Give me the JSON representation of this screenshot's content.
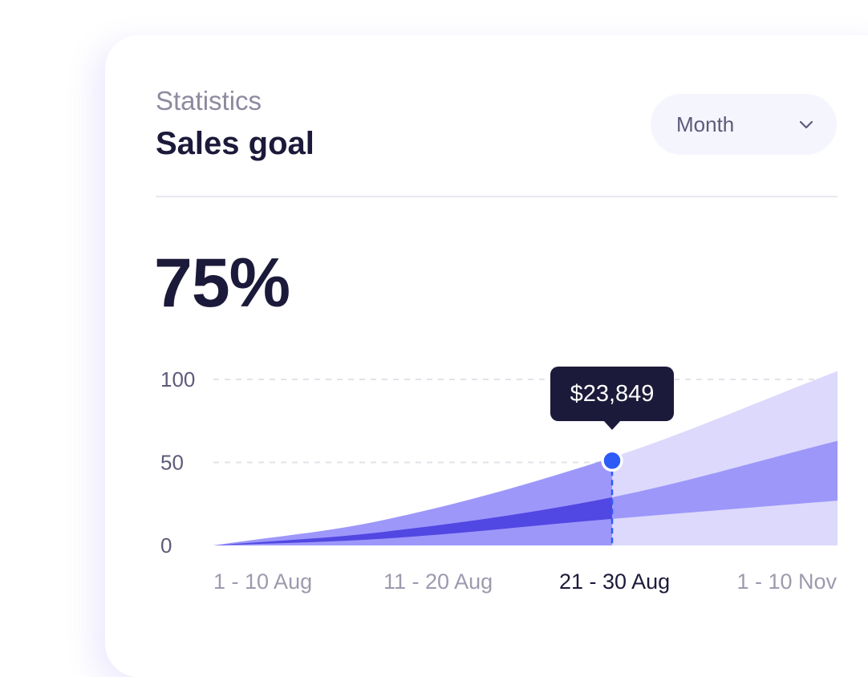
{
  "header": {
    "kicker": "Statistics",
    "title": "Sales goal"
  },
  "period_select": {
    "value": "Month",
    "icon": "chevron-down-icon"
  },
  "summary": {
    "value": "75%"
  },
  "tooltip": {
    "value": "$23,849",
    "category": "21 - 30 Aug"
  },
  "colors": {
    "light": "#dcd9fc",
    "medium": "#9d97fa",
    "dark": "#5147e2",
    "marker": "#2d5bf6",
    "text_dark": "#1c1a3a"
  },
  "chart_data": {
    "type": "area",
    "categories": [
      "1 - 10 Aug",
      "11 - 20 Aug",
      "21 - 30 Aug",
      "1 - 10 Nov"
    ],
    "active_category": "21 - 30 Aug",
    "ylim": [
      0,
      100
    ],
    "yticks": [
      0,
      50,
      100
    ],
    "grid": "dashed",
    "series": [
      {
        "values": [
          0,
          15,
          53,
          105
        ]
      },
      {
        "values": [
          0,
          8,
          29,
          63
        ]
      },
      {
        "values": [
          0,
          4,
          16,
          27
        ]
      }
    ]
  }
}
